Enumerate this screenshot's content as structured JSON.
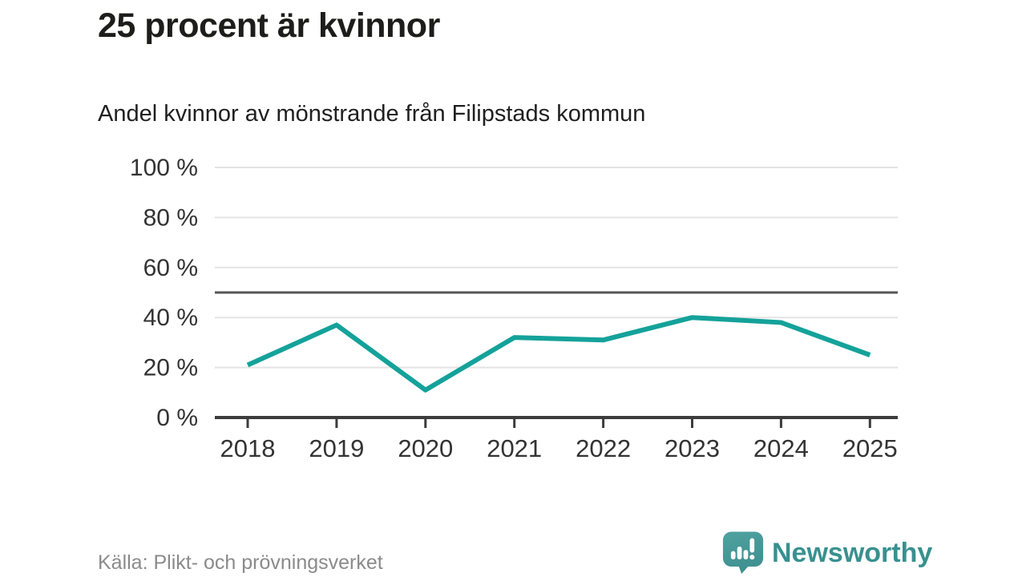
{
  "page": {
    "background": "#ffffff"
  },
  "header": {
    "title": "25 procent är kvinnor",
    "subtitle": "Andel kvinnor av mönstrande från Filipstads kommun"
  },
  "chart_data": {
    "type": "line",
    "title": "25 procent är kvinnor",
    "subtitle": "Andel kvinnor av mönstrande från Filipstads kommun",
    "categories": [
      "2018",
      "2019",
      "2020",
      "2021",
      "2022",
      "2023",
      "2024",
      "2025"
    ],
    "values": [
      21,
      37,
      11,
      32,
      31,
      40,
      38,
      25
    ],
    "unit": "%",
    "ylim": [
      0,
      100
    ],
    "ytick_values": [
      0,
      20,
      40,
      60,
      80,
      100
    ],
    "ytick_labels": [
      "0 %",
      "20 %",
      "40 %",
      "60 %",
      "80 %",
      "100 %"
    ],
    "reference_line_y": 50,
    "grid": "horizontal",
    "legend_position": "none",
    "line_color": "#14a29a",
    "reference_line_color": "#565656",
    "axis_color": "#3c3c3c",
    "grid_color": "#e3e3e3",
    "tick_label_color": "#333333"
  },
  "footer": {
    "source": "Källa: Plikt- och prövningsverket",
    "brand": {
      "name": "Newsworthy",
      "wordmark_color": "#37918f",
      "icon": "newsworthy-chart-bubble-icon",
      "icon_color": "#479a98"
    }
  }
}
